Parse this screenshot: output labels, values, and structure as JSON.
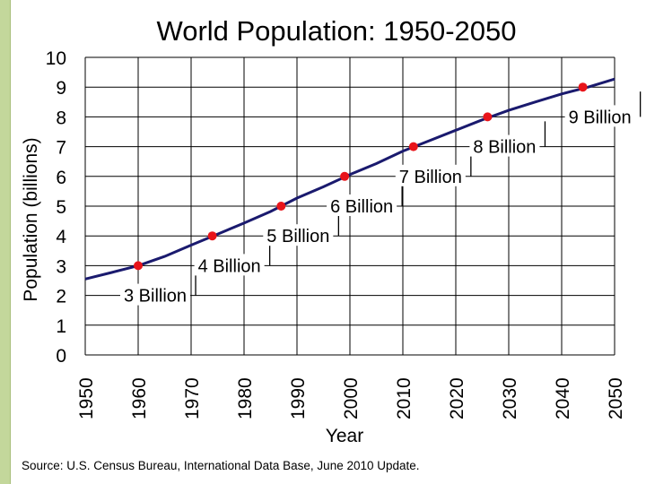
{
  "colors": {
    "curve": "#1a1a6e",
    "marker": "#e8141a",
    "grid": "#000000",
    "stripe": "#c3d79b"
  },
  "chart_data": {
    "type": "line",
    "title": "World Population: 1950-2050",
    "xlabel": "Year",
    "ylabel": "Population  (billions)",
    "xlim": [
      1950,
      2050
    ],
    "ylim": [
      0,
      10
    ],
    "xticks": [
      "1950",
      "1960",
      "1970",
      "1980",
      "1990",
      "2000",
      "2010",
      "2020",
      "2030",
      "2040",
      "2050"
    ],
    "yticks": [
      "0",
      "1",
      "2",
      "3",
      "4",
      "5",
      "6",
      "7",
      "8",
      "9",
      "10"
    ],
    "grid": true,
    "series": [
      {
        "name": "World Population",
        "x": [
          1950,
          1955,
          1960,
          1965,
          1970,
          1975,
          1980,
          1985,
          1990,
          1995,
          2000,
          2005,
          2010,
          2015,
          2020,
          2025,
          2030,
          2035,
          2040,
          2045,
          2050
        ],
        "y": [
          2.55,
          2.77,
          3.0,
          3.31,
          3.69,
          4.06,
          4.43,
          4.82,
          5.27,
          5.65,
          6.06,
          6.43,
          6.85,
          7.2,
          7.55,
          7.9,
          8.22,
          8.5,
          8.77,
          9.0,
          9.27
        ]
      }
    ],
    "milestones": [
      {
        "x": 1960,
        "y": 3,
        "label": "3 Billion"
      },
      {
        "x": 1974,
        "y": 4,
        "label": "4 Billion"
      },
      {
        "x": 1987,
        "y": 5,
        "label": "5 Billion"
      },
      {
        "x": 1999,
        "y": 6,
        "label": "6 Billion"
      },
      {
        "x": 2012,
        "y": 7,
        "label": "7 Billion"
      },
      {
        "x": 2026,
        "y": 8,
        "label": "8 Billion"
      },
      {
        "x": 2044,
        "y": 9,
        "label": "9 Billion"
      }
    ]
  },
  "source": "Source: U.S. Census Bureau, International Data Base, June 2010 Update."
}
